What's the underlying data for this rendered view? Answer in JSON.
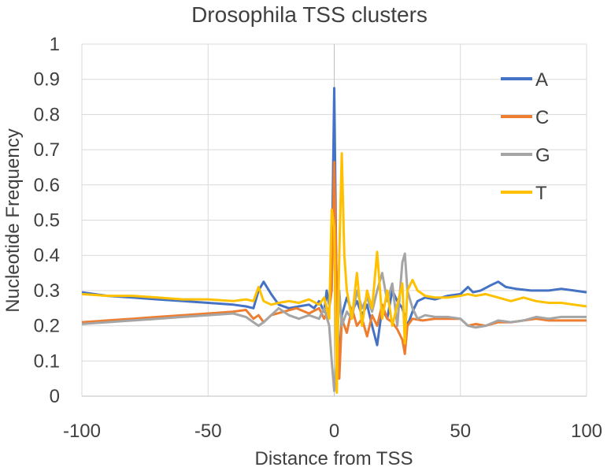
{
  "chart_data": {
    "type": "line",
    "title": "Drosophila TSS clusters",
    "xlabel": "Distance from TSS",
    "ylabel": "Nucleotide Frequency",
    "xlim": [
      -100,
      100
    ],
    "ylim": [
      0,
      1
    ],
    "xticks": [
      -100,
      -50,
      0,
      50,
      100
    ],
    "xtick_labels": [
      "-100",
      "-50",
      "0",
      "50",
      "100"
    ],
    "yticks": [
      0,
      0.1,
      0.2,
      0.3,
      0.4,
      0.5,
      0.6,
      0.7,
      0.8,
      0.9,
      1
    ],
    "ytick_labels": [
      "0",
      "0.1",
      "0.2",
      "0.3",
      "0.4",
      "0.5",
      "0.6",
      "0.7",
      "0.8",
      "0.9",
      "1"
    ],
    "grid": true,
    "legend_position": "top-right",
    "series": [
      {
        "name": "A",
        "color": "#4472C4",
        "points": [
          [
            -100,
            0.295
          ],
          [
            -90,
            0.285
          ],
          [
            -80,
            0.28
          ],
          [
            -70,
            0.275
          ],
          [
            -60,
            0.27
          ],
          [
            -50,
            0.265
          ],
          [
            -40,
            0.26
          ],
          [
            -35,
            0.255
          ],
          [
            -32,
            0.25
          ],
          [
            -30,
            0.3
          ],
          [
            -28,
            0.325
          ],
          [
            -25,
            0.29
          ],
          [
            -22,
            0.26
          ],
          [
            -18,
            0.25
          ],
          [
            -14,
            0.255
          ],
          [
            -10,
            0.26
          ],
          [
            -8,
            0.25
          ],
          [
            -6,
            0.27
          ],
          [
            -4,
            0.24
          ],
          [
            -3,
            0.3
          ],
          [
            -2,
            0.26
          ],
          [
            -1,
            0.35
          ],
          [
            0,
            0.875
          ],
          [
            1,
            0.25
          ],
          [
            2,
            0.1
          ],
          [
            3,
            0.23
          ],
          [
            5,
            0.28
          ],
          [
            7,
            0.24
          ],
          [
            9,
            0.27
          ],
          [
            11,
            0.23
          ],
          [
            13,
            0.26
          ],
          [
            15,
            0.2
          ],
          [
            17,
            0.145
          ],
          [
            19,
            0.25
          ],
          [
            21,
            0.22
          ],
          [
            23,
            0.3
          ],
          [
            25,
            0.27
          ],
          [
            27,
            0.25
          ],
          [
            29,
            0.2
          ],
          [
            31,
            0.24
          ],
          [
            33,
            0.27
          ],
          [
            36,
            0.28
          ],
          [
            40,
            0.275
          ],
          [
            45,
            0.285
          ],
          [
            50,
            0.29
          ],
          [
            53,
            0.31
          ],
          [
            55,
            0.295
          ],
          [
            58,
            0.3
          ],
          [
            62,
            0.315
          ],
          [
            65,
            0.325
          ],
          [
            68,
            0.31
          ],
          [
            72,
            0.305
          ],
          [
            78,
            0.3
          ],
          [
            85,
            0.3
          ],
          [
            90,
            0.305
          ],
          [
            95,
            0.3
          ],
          [
            100,
            0.295
          ]
        ]
      },
      {
        "name": "C",
        "color": "#ED7D31",
        "points": [
          [
            -100,
            0.21
          ],
          [
            -90,
            0.215
          ],
          [
            -80,
            0.22
          ],
          [
            -70,
            0.225
          ],
          [
            -60,
            0.23
          ],
          [
            -50,
            0.235
          ],
          [
            -40,
            0.24
          ],
          [
            -35,
            0.245
          ],
          [
            -32,
            0.22
          ],
          [
            -30,
            0.23
          ],
          [
            -28,
            0.21
          ],
          [
            -25,
            0.23
          ],
          [
            -20,
            0.24
          ],
          [
            -15,
            0.25
          ],
          [
            -10,
            0.235
          ],
          [
            -6,
            0.25
          ],
          [
            -4,
            0.22
          ],
          [
            -2,
            0.25
          ],
          [
            -1,
            0.3
          ],
          [
            0,
            0.665
          ],
          [
            1,
            0.3
          ],
          [
            2,
            0.05
          ],
          [
            3,
            0.22
          ],
          [
            5,
            0.18
          ],
          [
            7,
            0.25
          ],
          [
            9,
            0.2
          ],
          [
            11,
            0.22
          ],
          [
            13,
            0.17
          ],
          [
            15,
            0.23
          ],
          [
            17,
            0.2
          ],
          [
            19,
            0.26
          ],
          [
            21,
            0.22
          ],
          [
            23,
            0.21
          ],
          [
            25,
            0.19
          ],
          [
            27,
            0.16
          ],
          [
            28,
            0.12
          ],
          [
            29,
            0.2
          ],
          [
            31,
            0.22
          ],
          [
            35,
            0.215
          ],
          [
            40,
            0.22
          ],
          [
            45,
            0.22
          ],
          [
            50,
            0.22
          ],
          [
            53,
            0.2
          ],
          [
            56,
            0.205
          ],
          [
            60,
            0.2
          ],
          [
            65,
            0.21
          ],
          [
            70,
            0.21
          ],
          [
            75,
            0.215
          ],
          [
            80,
            0.22
          ],
          [
            85,
            0.215
          ],
          [
            90,
            0.215
          ],
          [
            95,
            0.215
          ],
          [
            100,
            0.215
          ]
        ]
      },
      {
        "name": "G",
        "color": "#A5A5A5",
        "points": [
          [
            -100,
            0.205
          ],
          [
            -90,
            0.21
          ],
          [
            -80,
            0.215
          ],
          [
            -70,
            0.22
          ],
          [
            -60,
            0.225
          ],
          [
            -50,
            0.23
          ],
          [
            -40,
            0.235
          ],
          [
            -35,
            0.225
          ],
          [
            -32,
            0.21
          ],
          [
            -30,
            0.2
          ],
          [
            -28,
            0.21
          ],
          [
            -25,
            0.23
          ],
          [
            -22,
            0.25
          ],
          [
            -18,
            0.23
          ],
          [
            -14,
            0.22
          ],
          [
            -10,
            0.23
          ],
          [
            -6,
            0.22
          ],
          [
            -4,
            0.25
          ],
          [
            -2,
            0.2
          ],
          [
            -1,
            0.1
          ],
          [
            0,
            0.015
          ],
          [
            1,
            0.1
          ],
          [
            2,
            0.3
          ],
          [
            3,
            0.2
          ],
          [
            5,
            0.24
          ],
          [
            7,
            0.22
          ],
          [
            9,
            0.3
          ],
          [
            11,
            0.25
          ],
          [
            13,
            0.28
          ],
          [
            15,
            0.24
          ],
          [
            17,
            0.3
          ],
          [
            19,
            0.35
          ],
          [
            21,
            0.27
          ],
          [
            23,
            0.32
          ],
          [
            25,
            0.2
          ],
          [
            27,
            0.38
          ],
          [
            28,
            0.405
          ],
          [
            29,
            0.3
          ],
          [
            31,
            0.25
          ],
          [
            33,
            0.22
          ],
          [
            36,
            0.23
          ],
          [
            40,
            0.225
          ],
          [
            45,
            0.225
          ],
          [
            50,
            0.22
          ],
          [
            53,
            0.2
          ],
          [
            56,
            0.195
          ],
          [
            60,
            0.2
          ],
          [
            65,
            0.215
          ],
          [
            70,
            0.21
          ],
          [
            75,
            0.215
          ],
          [
            80,
            0.225
          ],
          [
            85,
            0.22
          ],
          [
            90,
            0.225
          ],
          [
            95,
            0.225
          ],
          [
            100,
            0.225
          ]
        ]
      },
      {
        "name": "T",
        "color": "#FFC000",
        "points": [
          [
            -100,
            0.29
          ],
          [
            -90,
            0.285
          ],
          [
            -80,
            0.285
          ],
          [
            -70,
            0.28
          ],
          [
            -60,
            0.275
          ],
          [
            -50,
            0.275
          ],
          [
            -40,
            0.27
          ],
          [
            -35,
            0.275
          ],
          [
            -32,
            0.27
          ],
          [
            -30,
            0.31
          ],
          [
            -28,
            0.27
          ],
          [
            -25,
            0.26
          ],
          [
            -22,
            0.265
          ],
          [
            -18,
            0.27
          ],
          [
            -14,
            0.265
          ],
          [
            -10,
            0.275
          ],
          [
            -6,
            0.26
          ],
          [
            -4,
            0.28
          ],
          [
            -2,
            0.22
          ],
          [
            -1,
            0.53
          ],
          [
            0,
            0.48
          ],
          [
            1,
            0.01
          ],
          [
            2,
            0.4
          ],
          [
            3,
            0.69
          ],
          [
            4,
            0.4
          ],
          [
            5,
            0.3
          ],
          [
            7,
            0.22
          ],
          [
            9,
            0.35
          ],
          [
            11,
            0.2
          ],
          [
            13,
            0.3
          ],
          [
            15,
            0.25
          ],
          [
            17,
            0.41
          ],
          [
            19,
            0.22
          ],
          [
            21,
            0.3
          ],
          [
            23,
            0.2
          ],
          [
            25,
            0.26
          ],
          [
            27,
            0.32
          ],
          [
            28,
            0.15
          ],
          [
            29,
            0.3
          ],
          [
            31,
            0.33
          ],
          [
            33,
            0.3
          ],
          [
            36,
            0.285
          ],
          [
            40,
            0.28
          ],
          [
            45,
            0.28
          ],
          [
            50,
            0.285
          ],
          [
            53,
            0.29
          ],
          [
            56,
            0.285
          ],
          [
            60,
            0.29
          ],
          [
            65,
            0.28
          ],
          [
            70,
            0.27
          ],
          [
            75,
            0.28
          ],
          [
            80,
            0.27
          ],
          [
            85,
            0.265
          ],
          [
            90,
            0.265
          ],
          [
            95,
            0.26
          ],
          [
            100,
            0.255
          ]
        ]
      }
    ]
  }
}
